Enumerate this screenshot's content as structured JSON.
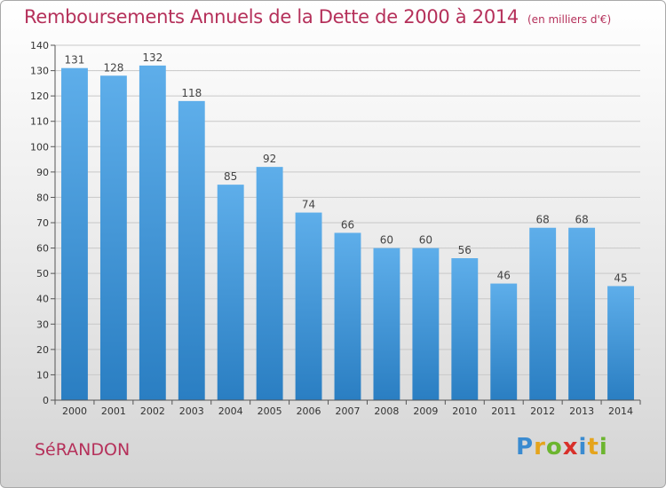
{
  "title": "Remboursements Annuels de la Dette de 2000 à 2014",
  "subtitle": "(en milliers d'€)",
  "place_name": "SéRANDON",
  "logo": {
    "text": "Proxiti",
    "letter_colors": [
      "#3a8bd0",
      "#e5a41c",
      "#6cb52f",
      "#d8302a",
      "#3a8bd0",
      "#e5a41c",
      "#6cb52f"
    ]
  },
  "colors": {
    "title": "#b5305a",
    "bar_top": "#5eaeea",
    "bar_bottom": "#2a7ec2",
    "grid": "#c8c8c8"
  },
  "chart_data": {
    "type": "bar",
    "title": "Remboursements Annuels de la Dette de 2000 à 2014",
    "subtitle": "(en milliers d'€)",
    "xlabel": "",
    "ylabel": "",
    "categories": [
      "2000",
      "2001",
      "2002",
      "2003",
      "2004",
      "2005",
      "2006",
      "2007",
      "2008",
      "2009",
      "2010",
      "2011",
      "2012",
      "2013",
      "2014"
    ],
    "values": [
      131,
      128,
      132,
      118,
      85,
      92,
      74,
      66,
      60,
      60,
      56,
      46,
      68,
      68,
      45
    ],
    "ylim": [
      0,
      140
    ],
    "ytick_step": 10,
    "grid": true,
    "data_labels": true,
    "legend": "none"
  }
}
